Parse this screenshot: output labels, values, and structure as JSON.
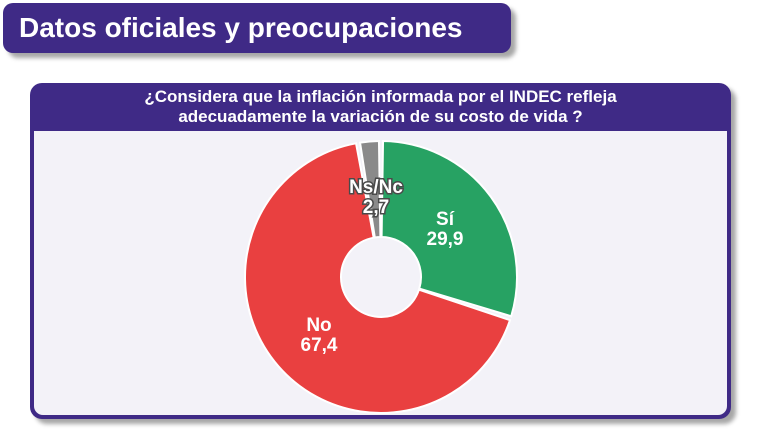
{
  "header": {
    "title": "Datos oficiales y preocupaciones"
  },
  "question": {
    "line1": "¿Considera que la inflación informada por el INDEC refleja",
    "line2": "adecuadamente la variación de su costo de vida ?"
  },
  "chart_data": {
    "type": "pie",
    "donut": true,
    "title": "¿Considera que la inflación informada por el INDEC refleja adecuadamente la variación de su costo de vida ?",
    "slices": [
      {
        "label": "Sí",
        "value": 29.9,
        "display": "29,9",
        "color": "#27a263"
      },
      {
        "label": "No",
        "value": 67.4,
        "display": "67,4",
        "color": "#e94040"
      },
      {
        "label": "Ns/Nc",
        "value": 2.7,
        "display": "2,7",
        "color": "#8a8a8a"
      }
    ]
  }
}
